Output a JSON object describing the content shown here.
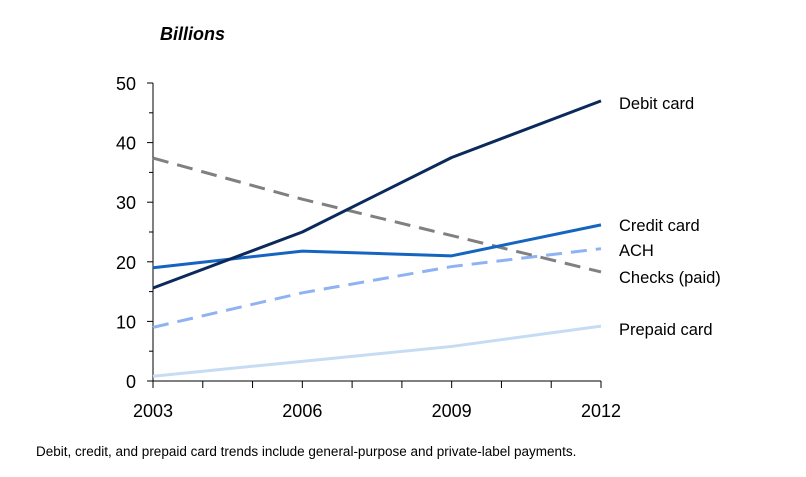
{
  "chart_data": {
    "type": "line",
    "title": "",
    "ylabel": "Billions",
    "xlabel": "",
    "x": [
      2003,
      2006,
      2009,
      2012
    ],
    "x_ticks": [
      "2003",
      "2006",
      "2009",
      "2012"
    ],
    "y_ticks": [
      "0",
      "10",
      "20",
      "30",
      "40",
      "50"
    ],
    "xlim": [
      2003,
      2012
    ],
    "ylim": [
      0,
      50
    ],
    "grid": false,
    "legend": "right-end line labels",
    "series": [
      {
        "name": "Debit card",
        "values": [
          15.6,
          25.0,
          37.5,
          47.0
        ],
        "color": "#0b2a5b",
        "style": "solid"
      },
      {
        "name": "Credit card",
        "values": [
          19.0,
          21.8,
          21.0,
          26.2
        ],
        "color": "#1565c0",
        "style": "solid"
      },
      {
        "name": "ACH",
        "values": [
          9.0,
          14.8,
          19.2,
          22.2
        ],
        "color": "#8fb3f2",
        "style": "dashed"
      },
      {
        "name": "Checks (paid)",
        "values": [
          37.4,
          30.5,
          24.4,
          18.3
        ],
        "color": "#808080",
        "style": "dashed"
      },
      {
        "name": "Prepaid card",
        "values": [
          0.8,
          3.3,
          5.8,
          9.2
        ],
        "color": "#c6dcf3",
        "style": "solid"
      }
    ],
    "footnote": "Debit, credit, and prepaid card trends include general-purpose and private-label payments."
  }
}
